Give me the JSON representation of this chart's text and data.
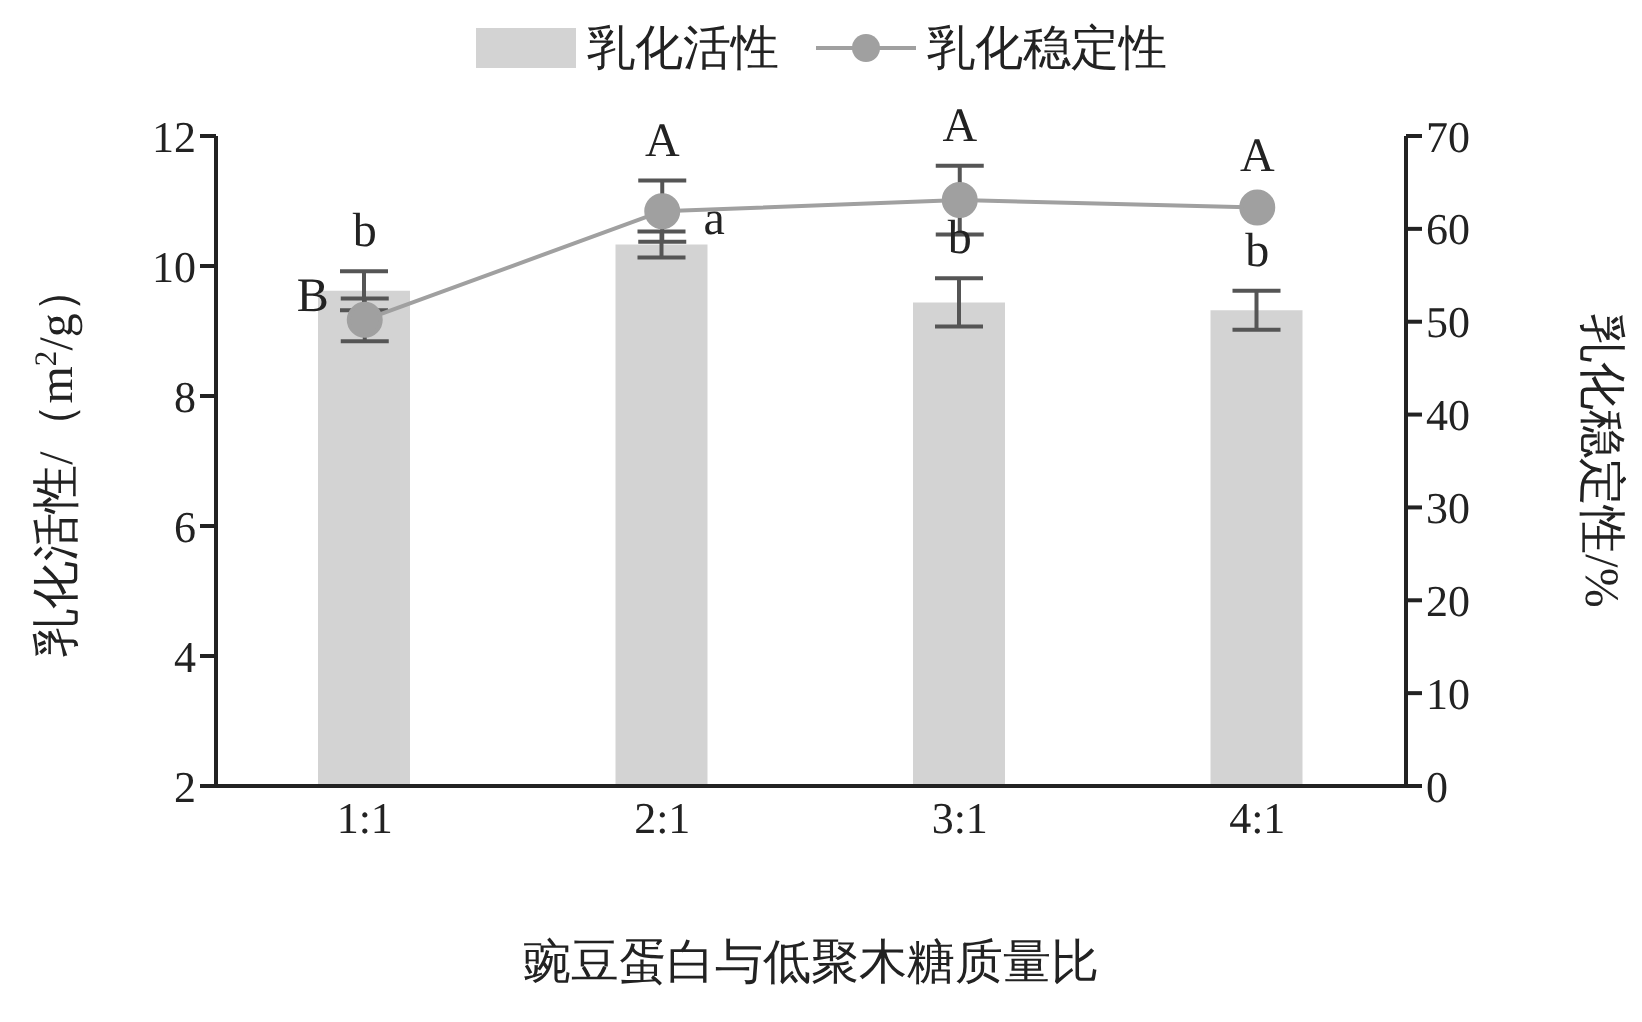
{
  "chart_data": {
    "type": "bar",
    "categories": [
      "1:1",
      "2:1",
      "3:1",
      "4:1"
    ],
    "xlabel": "豌豆蛋白与低聚木糖质量比",
    "ylabel": "乳化活性/（m$^{2}$/g）",
    "y2label": "乳化稳定性/%",
    "series": [
      {
        "name": "乳化活性",
        "color": "#d3d3d3",
        "values": [
          9.62,
          10.33,
          9.44,
          9.32
        ],
        "errors": [
          0.3,
          0.2,
          0.37,
          0.3
        ]
      },
      {
        "name": "乳化稳定性",
        "type": "line",
        "axis": "y2",
        "color": "#a0a0a0",
        "values": [
          50.2,
          61.9,
          63.1,
          62.3
        ],
        "errors": [
          2.3,
          3.3,
          3.7,
          null
        ],
        "marker": "circle"
      }
    ],
    "ylim": [
      2,
      12
    ],
    "yticks": [
      2,
      4,
      6,
      8,
      10,
      12
    ],
    "y2lim": [
      0,
      70
    ],
    "y2ticks": [
      0,
      10,
      20,
      30,
      40,
      50,
      60,
      70
    ],
    "legend": "top",
    "annotations": [
      "b",
      "B",
      "A",
      "a",
      "A",
      "b",
      "A",
      "b"
    ]
  }
}
